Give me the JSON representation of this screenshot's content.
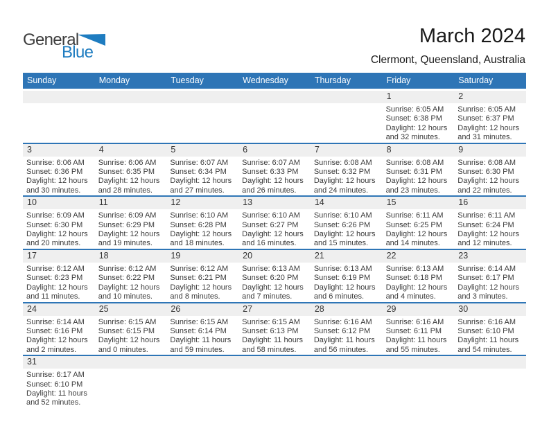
{
  "logo": {
    "general": "General",
    "blue": "Blue"
  },
  "header": {
    "title": "March 2024",
    "subtitle": "Clermont, Queensland, Australia"
  },
  "colors": {
    "header_bg": "#2E75B6",
    "header_text": "#FFFFFF",
    "separator": "#2E75B6",
    "date_strip_bg": "#EFEFEF",
    "logo_blue": "#1E7CC0",
    "title_text": "#1A1A1A",
    "body_text": "#3A3A3A"
  },
  "day_headers": [
    "Sunday",
    "Monday",
    "Tuesday",
    "Wednesday",
    "Thursday",
    "Friday",
    "Saturday"
  ],
  "weeks": [
    [
      null,
      null,
      null,
      null,
      null,
      {
        "day": "1",
        "sunrise": "Sunrise: 6:05 AM",
        "sunset": "Sunset: 6:38 PM",
        "daylight": "Daylight: 12 hours and 32 minutes."
      },
      {
        "day": "2",
        "sunrise": "Sunrise: 6:05 AM",
        "sunset": "Sunset: 6:37 PM",
        "daylight": "Daylight: 12 hours and 31 minutes."
      }
    ],
    [
      {
        "day": "3",
        "sunrise": "Sunrise: 6:06 AM",
        "sunset": "Sunset: 6:36 PM",
        "daylight": "Daylight: 12 hours and 30 minutes."
      },
      {
        "day": "4",
        "sunrise": "Sunrise: 6:06 AM",
        "sunset": "Sunset: 6:35 PM",
        "daylight": "Daylight: 12 hours and 28 minutes."
      },
      {
        "day": "5",
        "sunrise": "Sunrise: 6:07 AM",
        "sunset": "Sunset: 6:34 PM",
        "daylight": "Daylight: 12 hours and 27 minutes."
      },
      {
        "day": "6",
        "sunrise": "Sunrise: 6:07 AM",
        "sunset": "Sunset: 6:33 PM",
        "daylight": "Daylight: 12 hours and 26 minutes."
      },
      {
        "day": "7",
        "sunrise": "Sunrise: 6:08 AM",
        "sunset": "Sunset: 6:32 PM",
        "daylight": "Daylight: 12 hours and 24 minutes."
      },
      {
        "day": "8",
        "sunrise": "Sunrise: 6:08 AM",
        "sunset": "Sunset: 6:31 PM",
        "daylight": "Daylight: 12 hours and 23 minutes."
      },
      {
        "day": "9",
        "sunrise": "Sunrise: 6:08 AM",
        "sunset": "Sunset: 6:30 PM",
        "daylight": "Daylight: 12 hours and 22 minutes."
      }
    ],
    [
      {
        "day": "10",
        "sunrise": "Sunrise: 6:09 AM",
        "sunset": "Sunset: 6:30 PM",
        "daylight": "Daylight: 12 hours and 20 minutes."
      },
      {
        "day": "11",
        "sunrise": "Sunrise: 6:09 AM",
        "sunset": "Sunset: 6:29 PM",
        "daylight": "Daylight: 12 hours and 19 minutes."
      },
      {
        "day": "12",
        "sunrise": "Sunrise: 6:10 AM",
        "sunset": "Sunset: 6:28 PM",
        "daylight": "Daylight: 12 hours and 18 minutes."
      },
      {
        "day": "13",
        "sunrise": "Sunrise: 6:10 AM",
        "sunset": "Sunset: 6:27 PM",
        "daylight": "Daylight: 12 hours and 16 minutes."
      },
      {
        "day": "14",
        "sunrise": "Sunrise: 6:10 AM",
        "sunset": "Sunset: 6:26 PM",
        "daylight": "Daylight: 12 hours and 15 minutes."
      },
      {
        "day": "15",
        "sunrise": "Sunrise: 6:11 AM",
        "sunset": "Sunset: 6:25 PM",
        "daylight": "Daylight: 12 hours and 14 minutes."
      },
      {
        "day": "16",
        "sunrise": "Sunrise: 6:11 AM",
        "sunset": "Sunset: 6:24 PM",
        "daylight": "Daylight: 12 hours and 12 minutes."
      }
    ],
    [
      {
        "day": "17",
        "sunrise": "Sunrise: 6:12 AM",
        "sunset": "Sunset: 6:23 PM",
        "daylight": "Daylight: 12 hours and 11 minutes."
      },
      {
        "day": "18",
        "sunrise": "Sunrise: 6:12 AM",
        "sunset": "Sunset: 6:22 PM",
        "daylight": "Daylight: 12 hours and 10 minutes."
      },
      {
        "day": "19",
        "sunrise": "Sunrise: 6:12 AM",
        "sunset": "Sunset: 6:21 PM",
        "daylight": "Daylight: 12 hours and 8 minutes."
      },
      {
        "day": "20",
        "sunrise": "Sunrise: 6:13 AM",
        "sunset": "Sunset: 6:20 PM",
        "daylight": "Daylight: 12 hours and 7 minutes."
      },
      {
        "day": "21",
        "sunrise": "Sunrise: 6:13 AM",
        "sunset": "Sunset: 6:19 PM",
        "daylight": "Daylight: 12 hours and 6 minutes."
      },
      {
        "day": "22",
        "sunrise": "Sunrise: 6:13 AM",
        "sunset": "Sunset: 6:18 PM",
        "daylight": "Daylight: 12 hours and 4 minutes."
      },
      {
        "day": "23",
        "sunrise": "Sunrise: 6:14 AM",
        "sunset": "Sunset: 6:17 PM",
        "daylight": "Daylight: 12 hours and 3 minutes."
      }
    ],
    [
      {
        "day": "24",
        "sunrise": "Sunrise: 6:14 AM",
        "sunset": "Sunset: 6:16 PM",
        "daylight": "Daylight: 12 hours and 2 minutes."
      },
      {
        "day": "25",
        "sunrise": "Sunrise: 6:15 AM",
        "sunset": "Sunset: 6:15 PM",
        "daylight": "Daylight: 12 hours and 0 minutes."
      },
      {
        "day": "26",
        "sunrise": "Sunrise: 6:15 AM",
        "sunset": "Sunset: 6:14 PM",
        "daylight": "Daylight: 11 hours and 59 minutes."
      },
      {
        "day": "27",
        "sunrise": "Sunrise: 6:15 AM",
        "sunset": "Sunset: 6:13 PM",
        "daylight": "Daylight: 11 hours and 58 minutes."
      },
      {
        "day": "28",
        "sunrise": "Sunrise: 6:16 AM",
        "sunset": "Sunset: 6:12 PM",
        "daylight": "Daylight: 11 hours and 56 minutes."
      },
      {
        "day": "29",
        "sunrise": "Sunrise: 6:16 AM",
        "sunset": "Sunset: 6:11 PM",
        "daylight": "Daylight: 11 hours and 55 minutes."
      },
      {
        "day": "30",
        "sunrise": "Sunrise: 6:16 AM",
        "sunset": "Sunset: 6:10 PM",
        "daylight": "Daylight: 11 hours and 54 minutes."
      }
    ],
    [
      {
        "day": "31",
        "sunrise": "Sunrise: 6:17 AM",
        "sunset": "Sunset: 6:10 PM",
        "daylight": "Daylight: 11 hours and 52 minutes."
      },
      null,
      null,
      null,
      null,
      null,
      null
    ]
  ]
}
